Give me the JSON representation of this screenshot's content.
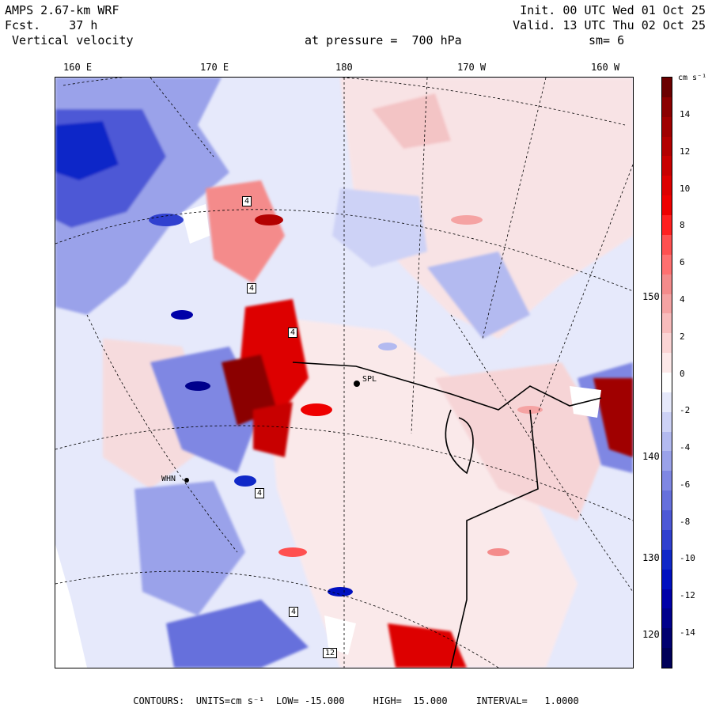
{
  "header": {
    "model": "AMPS 2.67-km WRF",
    "forecast": "Fcst.    37 h",
    "field": " Vertical velocity",
    "init": "Init. 00 UTC Wed 01 Oct 25",
    "valid": "Valid. 13 UTC Thu 02 Oct 25",
    "level": "at pressure =  700 hPa",
    "smoothing": "sm= 6"
  },
  "longitude_labels": [
    "160 E",
    "170 E",
    "180",
    "170 W",
    "160 W"
  ],
  "latitude_labels": [
    "150 W",
    "140 W",
    "130 W",
    "120 W"
  ],
  "station_labels": [
    "SPL",
    "WHN"
  ],
  "contour_labels": [
    "4",
    "4",
    "4",
    "4",
    "12",
    "4"
  ],
  "colorbar": {
    "unit": "cm s⁻¹",
    "ticks": [
      "14",
      "12",
      "10",
      "8",
      "6",
      "4",
      "2",
      "0",
      "-2",
      "-4",
      "-6",
      "-8",
      "-10",
      "-12",
      "-14"
    ],
    "colors_top_to_bottom": [
      "#6b0000",
      "#8b0000",
      "#a00000",
      "#b30000",
      "#c80000",
      "#dd0000",
      "#ee0000",
      "#ff2020",
      "#ff5050",
      "#ff7070",
      "#f48b8b",
      "#f5a3a3",
      "#f8bcbc",
      "#fbd4d4",
      "#fde9e9",
      "#ffffff",
      "#e6e9fb",
      "#cdd2f6",
      "#b3baf0",
      "#9aa2ea",
      "#7f87e3",
      "#6670dc",
      "#4d58d6",
      "#3040cf",
      "#1028c8",
      "#0010c0",
      "#0000a8",
      "#00008c",
      "#000070",
      "#000058"
    ]
  },
  "footer": "CONTOURS:  UNITS=cm s⁻¹  LOW= -15.000     HIGH=  15.000     INTERVAL=   1.0000"
}
